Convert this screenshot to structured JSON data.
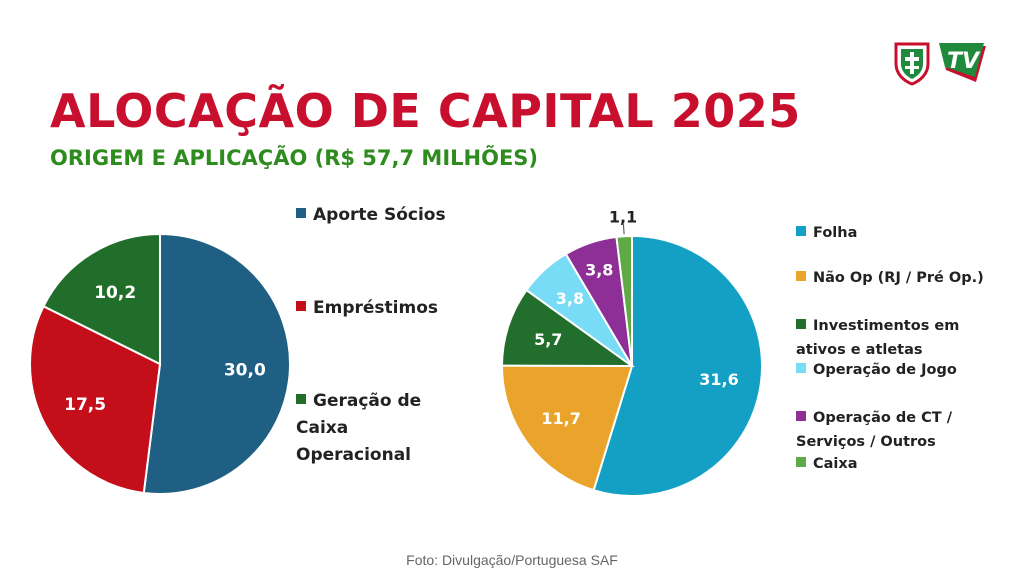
{
  "title": "ALOCAÇÃO DE CAPITAL 2025",
  "subtitle": "ORIGEM E APLICAÇÃO (R$ 57,7 MILHÕES)",
  "credit": "Foto: Divulgação/Portuguesa SAF",
  "logos": {
    "tv_text": "TV",
    "shield_icon": "portuguesa-shield-icon",
    "tv_icon": "tv-logo-icon"
  },
  "colors": {
    "title": "#c8102e",
    "subtitle": "#2e8b1e"
  },
  "chart_data": [
    {
      "type": "pie",
      "categories": [
        "Aporte Sócios",
        "Empréstimos",
        "Geração de Caixa Operacional"
      ],
      "values": [
        30.0,
        17.5,
        10.2
      ],
      "labels": [
        "30,0",
        "17,5",
        "10,2"
      ],
      "colors": [
        "#1f5f84",
        "#c40f1a",
        "#216e2b"
      ],
      "legend_position": "right"
    },
    {
      "type": "pie",
      "categories": [
        "Folha",
        "Não Op (RJ / Pré Op.)",
        "Investimentos em ativos e atletas",
        "Operação de Jogo",
        "Operação de CT / Serviços / Outros",
        "Caixa"
      ],
      "values": [
        31.6,
        11.7,
        5.7,
        3.8,
        3.8,
        1.1
      ],
      "labels": [
        "31,6",
        "11,7",
        "5,7",
        "3,8",
        "3,8",
        "1,1"
      ],
      "colors": [
        "#14a0c4",
        "#eaa42c",
        "#226e2d",
        "#78dcf6",
        "#8e2f98",
        "#5faa46"
      ],
      "legend_position": "right"
    }
  ]
}
